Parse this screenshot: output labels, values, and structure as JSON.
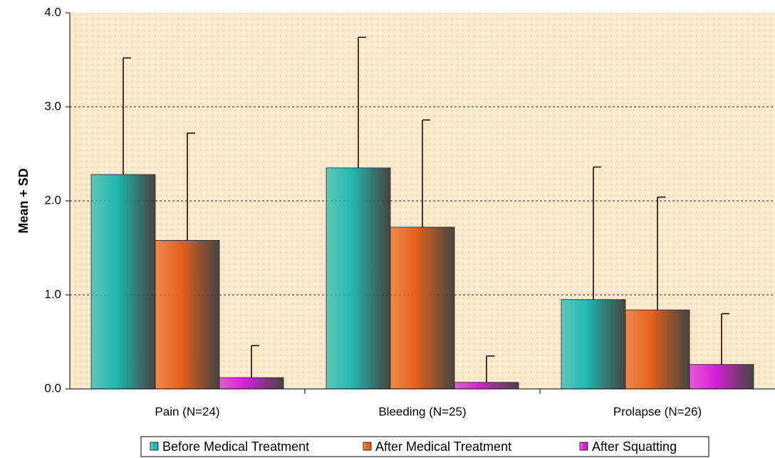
{
  "chart_data": {
    "type": "bar",
    "categories": [
      "Pain (N=24)",
      "Bleeding (N=25)",
      "Prolapse (N=26)"
    ],
    "series": [
      {
        "name": "Before Medical Treatment",
        "color": "#1fb8b2",
        "values": [
          2.28,
          2.35,
          0.95
        ],
        "errors": [
          1.24,
          1.39,
          1.41
        ]
      },
      {
        "name": "After Medical Treatment",
        "color": "#e8601a",
        "values": [
          1.58,
          1.72,
          0.84
        ],
        "errors": [
          1.14,
          1.14,
          1.2
        ]
      },
      {
        "name": "After Squatting",
        "color": "#d81fd8",
        "values": [
          0.12,
          0.07,
          0.26
        ],
        "errors": [
          0.34,
          0.28,
          0.54
        ]
      }
    ],
    "ylabel": "Mean + SD",
    "ylim": [
      0,
      4
    ],
    "yticks": [
      {
        "value": 0,
        "label": "0.0"
      },
      {
        "value": 1,
        "label": "1.0"
      },
      {
        "value": 2,
        "label": "2.0"
      },
      {
        "value": 3,
        "label": "3.0"
      },
      {
        "value": 4,
        "label": "4.0"
      }
    ],
    "grid": true,
    "legend": "bottom"
  }
}
